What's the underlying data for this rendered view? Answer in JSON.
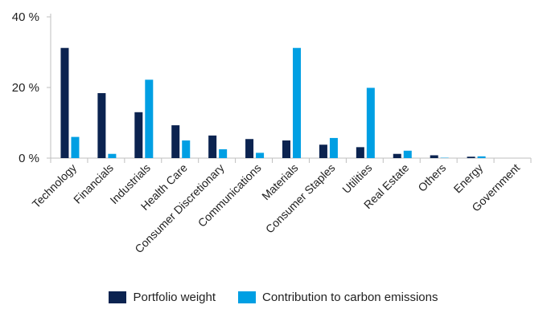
{
  "chart_data": {
    "type": "bar",
    "categories": [
      "Technology",
      "Financials",
      "Industrials",
      "Health Care",
      "Consumer Discretionary",
      "Communications",
      "Materials",
      "Consumer Staples",
      "Utilities",
      "Real Estate",
      "Others",
      "Energy",
      "Government"
    ],
    "series": [
      {
        "name": "Portfolio weight",
        "color": "#0b2350",
        "values": [
          31.2,
          18.4,
          13.0,
          9.3,
          6.4,
          5.4,
          5.0,
          3.8,
          3.1,
          1.2,
          0.8,
          0.4,
          0.0
        ]
      },
      {
        "name": "Contribution to carbon emissions",
        "color": "#009fe3",
        "values": [
          6.0,
          1.2,
          22.2,
          5.0,
          2.5,
          1.5,
          31.2,
          5.7,
          19.9,
          2.1,
          0.1,
          0.5,
          0.0
        ]
      }
    ],
    "ylim": [
      0,
      40
    ],
    "yticks": [
      "0 %",
      "20 %",
      "40 %"
    ],
    "ytick_values": [
      0,
      20,
      40
    ],
    "grid": false,
    "legend_position": "bottom"
  }
}
